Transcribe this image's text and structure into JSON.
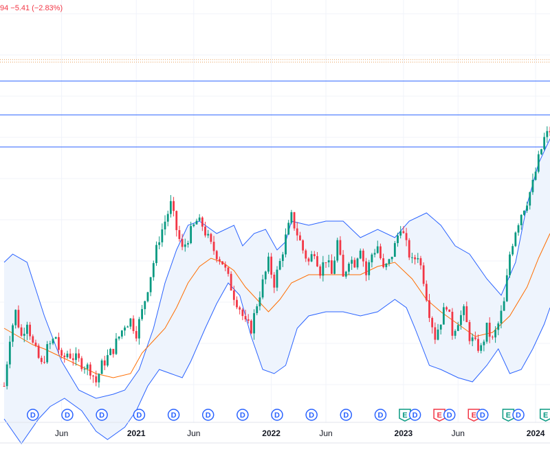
{
  "header": {
    "price_change": "94  −5.41 (−2.83%)"
  },
  "colors": {
    "up": "#089981",
    "down": "#f23645",
    "band": "#2962ff",
    "band_fill": "#eef4fd",
    "basis": "#ff6d00",
    "hline": "#2962ff",
    "dotted": "#e8a05a",
    "grid": "#f0f3fa",
    "axis_text": "#131722",
    "dividend": "#2962ff",
    "earnings_beat": "#089981",
    "earnings_miss": "#f23645"
  },
  "chart_data": {
    "type": "candlestick",
    "x_axis": {
      "tick_labels": [
        "Jun",
        "2021",
        "Jun",
        "2022",
        "Jun",
        "2023",
        "Jun",
        "2024"
      ],
      "tick_weeks": [
        20,
        46,
        66,
        93,
        112,
        139,
        158,
        185
      ],
      "week_range": [
        0,
        190
      ]
    },
    "y_range": [
      0,
      100
    ],
    "horizontal_lines": [
      82,
      73.8,
      66
    ],
    "dotted_lines": [
      87.2,
      86.6
    ],
    "bollinger": {
      "upper": [
        [
          0,
          38
        ],
        [
          3,
          40
        ],
        [
          8,
          38
        ],
        [
          14,
          25
        ],
        [
          20,
          14
        ],
        [
          26,
          7
        ],
        [
          32,
          5
        ],
        [
          38,
          6
        ],
        [
          42,
          7
        ],
        [
          47,
          12
        ],
        [
          52,
          22
        ],
        [
          56,
          33
        ],
        [
          60,
          41
        ],
        [
          64,
          47
        ],
        [
          68,
          48
        ],
        [
          74,
          45
        ],
        [
          80,
          47
        ],
        [
          83,
          42
        ],
        [
          87,
          45
        ],
        [
          91,
          46
        ],
        [
          95,
          41
        ],
        [
          98,
          43
        ],
        [
          100,
          48
        ],
        [
          106,
          47
        ],
        [
          112,
          48
        ],
        [
          118,
          48
        ],
        [
          124,
          44
        ],
        [
          130,
          46
        ],
        [
          136,
          44
        ],
        [
          141,
          48
        ],
        [
          147,
          50
        ],
        [
          152,
          47
        ],
        [
          157,
          42
        ],
        [
          162,
          40
        ],
        [
          168,
          34
        ],
        [
          173,
          30
        ],
        [
          178,
          38
        ],
        [
          182,
          52
        ],
        [
          186,
          62
        ],
        [
          190,
          68
        ]
      ],
      "basis": [
        [
          0,
          22
        ],
        [
          5,
          20
        ],
        [
          10,
          18
        ],
        [
          14,
          17
        ],
        [
          20,
          15
        ],
        [
          26,
          13
        ],
        [
          32,
          11
        ],
        [
          38,
          10
        ],
        [
          44,
          11
        ],
        [
          48,
          16
        ],
        [
          52,
          19
        ],
        [
          56,
          22
        ],
        [
          60,
          27
        ],
        [
          64,
          33
        ],
        [
          68,
          37
        ],
        [
          72,
          39
        ],
        [
          76,
          38
        ],
        [
          80,
          36
        ],
        [
          84,
          32
        ],
        [
          88,
          29
        ],
        [
          92,
          26
        ],
        [
          96,
          29
        ],
        [
          100,
          33
        ],
        [
          106,
          35
        ],
        [
          112,
          35
        ],
        [
          118,
          35
        ],
        [
          124,
          35
        ],
        [
          130,
          37
        ],
        [
          136,
          38
        ],
        [
          142,
          34
        ],
        [
          147,
          29
        ],
        [
          152,
          26
        ],
        [
          158,
          23
        ],
        [
          164,
          20
        ],
        [
          170,
          21
        ],
        [
          176,
          25
        ],
        [
          182,
          32
        ],
        [
          186,
          39
        ],
        [
          190,
          45
        ]
      ],
      "lower": [
        [
          0,
          0
        ],
        [
          6,
          -6
        ],
        [
          12,
          0
        ],
        [
          16,
          3
        ],
        [
          21,
          5
        ],
        [
          27,
          2
        ],
        [
          32,
          -3
        ],
        [
          36,
          -5
        ],
        [
          42,
          -2
        ],
        [
          46,
          2
        ],
        [
          50,
          8
        ],
        [
          54,
          12
        ],
        [
          58,
          11
        ],
        [
          62,
          10
        ],
        [
          65,
          14
        ],
        [
          70,
          22
        ],
        [
          74,
          28
        ],
        [
          78,
          33
        ],
        [
          82,
          30
        ],
        [
          86,
          20
        ],
        [
          90,
          12
        ],
        [
          94,
          11
        ],
        [
          98,
          13
        ],
        [
          102,
          22
        ],
        [
          106,
          25
        ],
        [
          112,
          26
        ],
        [
          118,
          26
        ],
        [
          124,
          25
        ],
        [
          130,
          26
        ],
        [
          136,
          29
        ],
        [
          140,
          27
        ],
        [
          143,
          22
        ],
        [
          148,
          13
        ],
        [
          152,
          12
        ],
        [
          158,
          10
        ],
        [
          163,
          9
        ],
        [
          168,
          13
        ],
        [
          172,
          17
        ],
        [
          176,
          11
        ],
        [
          180,
          12
        ],
        [
          184,
          17
        ],
        [
          188,
          23
        ],
        [
          190,
          27
        ]
      ]
    },
    "close_points": [
      [
        0,
        8
      ],
      [
        2,
        20
      ],
      [
        4,
        26
      ],
      [
        6,
        20
      ],
      [
        8,
        24
      ],
      [
        10,
        18
      ],
      [
        13,
        13
      ],
      [
        15,
        17
      ],
      [
        18,
        20
      ],
      [
        20,
        14
      ],
      [
        22,
        16
      ],
      [
        26,
        14
      ],
      [
        30,
        12
      ],
      [
        32,
        9
      ],
      [
        34,
        13
      ],
      [
        36,
        15
      ],
      [
        38,
        17
      ],
      [
        40,
        20
      ],
      [
        42,
        23
      ],
      [
        44,
        24
      ],
      [
        46,
        21
      ],
      [
        48,
        26
      ],
      [
        50,
        32
      ],
      [
        52,
        38
      ],
      [
        54,
        44
      ],
      [
        56,
        48
      ],
      [
        58,
        52
      ],
      [
        60,
        46
      ],
      [
        62,
        41
      ],
      [
        64,
        44
      ],
      [
        67,
        48
      ],
      [
        69,
        47
      ],
      [
        72,
        42
      ],
      [
        74,
        40
      ],
      [
        76,
        38
      ],
      [
        80,
        30
      ],
      [
        82,
        27
      ],
      [
        84,
        23
      ],
      [
        86,
        22
      ],
      [
        88,
        28
      ],
      [
        90,
        33
      ],
      [
        92,
        38
      ],
      [
        94,
        33
      ],
      [
        96,
        38
      ],
      [
        98,
        44
      ],
      [
        100,
        49
      ],
      [
        102,
        45
      ],
      [
        104,
        41
      ],
      [
        106,
        38
      ],
      [
        108,
        41
      ],
      [
        110,
        36
      ],
      [
        112,
        39
      ],
      [
        114,
        35
      ],
      [
        116,
        43
      ],
      [
        118,
        34
      ],
      [
        120,
        39
      ],
      [
        122,
        38
      ],
      [
        124,
        42
      ],
      [
        126,
        35
      ],
      [
        128,
        40
      ],
      [
        130,
        42
      ],
      [
        132,
        36
      ],
      [
        134,
        38
      ],
      [
        136,
        42
      ],
      [
        138,
        47
      ],
      [
        140,
        42
      ],
      [
        142,
        38
      ],
      [
        144,
        40
      ],
      [
        146,
        34
      ],
      [
        148,
        26
      ],
      [
        150,
        20
      ],
      [
        152,
        24
      ],
      [
        154,
        28
      ],
      [
        156,
        21
      ],
      [
        158,
        24
      ],
      [
        160,
        26
      ],
      [
        162,
        20
      ],
      [
        164,
        18
      ],
      [
        166,
        17
      ],
      [
        168,
        22
      ],
      [
        170,
        19
      ],
      [
        172,
        23
      ],
      [
        174,
        28
      ],
      [
        176,
        40
      ],
      [
        178,
        46
      ],
      [
        180,
        50
      ],
      [
        182,
        53
      ],
      [
        184,
        57
      ],
      [
        186,
        63
      ],
      [
        188,
        68
      ],
      [
        190,
        70
      ]
    ],
    "events": [
      {
        "type": "dividend",
        "label": "D",
        "week": 10
      },
      {
        "type": "dividend",
        "label": "D",
        "week": 22
      },
      {
        "type": "dividend",
        "label": "D",
        "week": 34
      },
      {
        "type": "dividend",
        "label": "D",
        "week": 47
      },
      {
        "type": "dividend",
        "label": "D",
        "week": 59
      },
      {
        "type": "dividend",
        "label": "D",
        "week": 71
      },
      {
        "type": "dividend",
        "label": "D",
        "week": 83
      },
      {
        "type": "dividend",
        "label": "D",
        "week": 95
      },
      {
        "type": "dividend",
        "label": "D",
        "week": 107
      },
      {
        "type": "dividend",
        "label": "D",
        "week": 119
      },
      {
        "type": "dividend",
        "label": "D",
        "week": 131
      },
      {
        "type": "earnings_beat",
        "label": "E",
        "week": 139.5
      },
      {
        "type": "dividend",
        "label": "D",
        "week": 143
      },
      {
        "type": "earnings_miss",
        "label": "E",
        "week": 151.5
      },
      {
        "type": "dividend",
        "label": "D",
        "week": 155
      },
      {
        "type": "earnings_miss",
        "label": "E",
        "week": 163.5
      },
      {
        "type": "dividend",
        "label": "D",
        "week": 166.5
      },
      {
        "type": "earnings_beat",
        "label": "E",
        "week": 175.5
      },
      {
        "type": "dividend",
        "label": "D",
        "week": 179
      },
      {
        "type": "earnings_beat",
        "label": "E",
        "week": 188.5
      }
    ]
  }
}
